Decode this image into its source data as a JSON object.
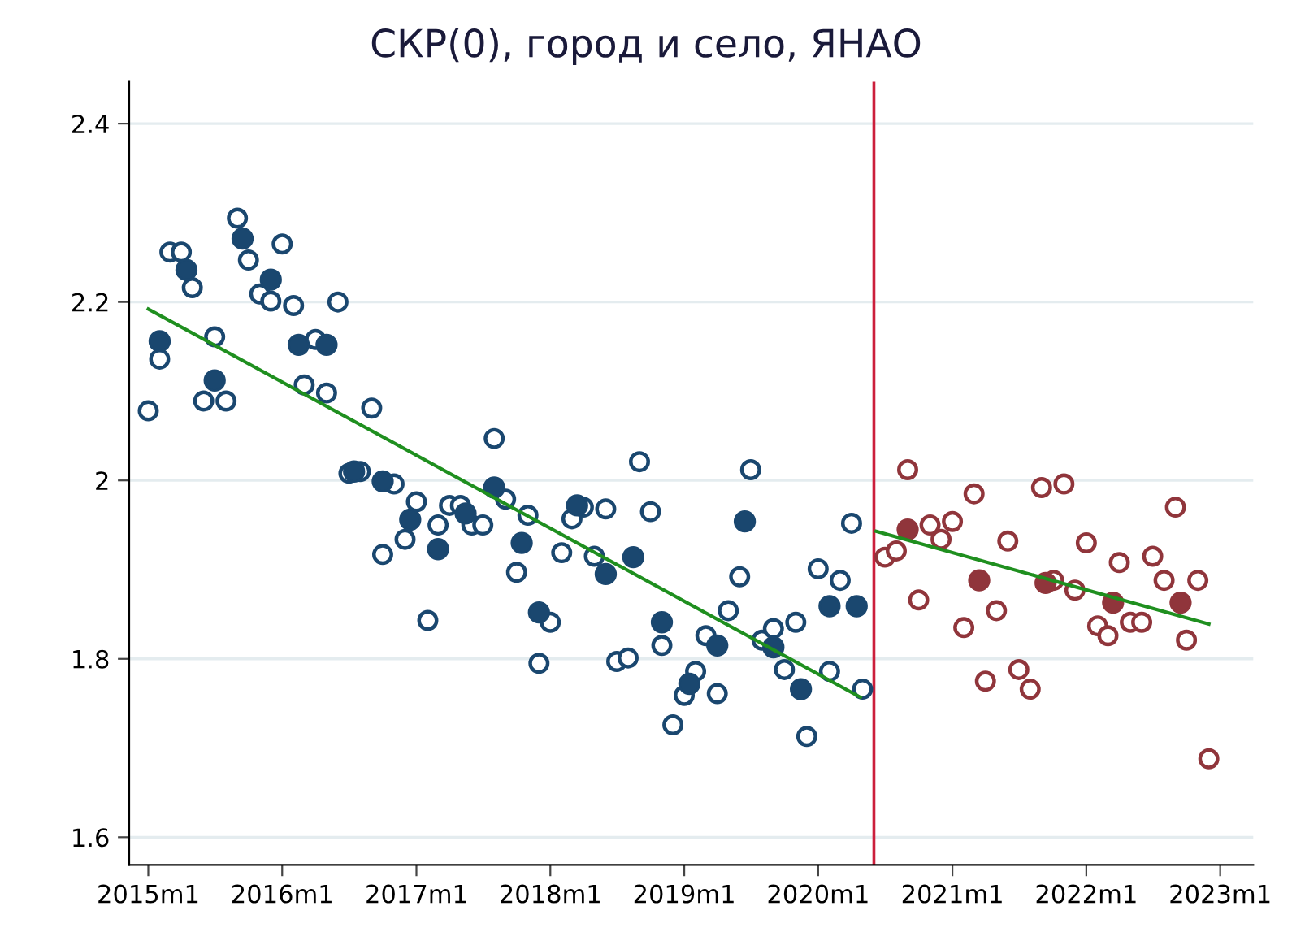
{
  "chart_data": {
    "type": "scatter",
    "title": "СКР(0), город и село, ЯНАО",
    "xlim": [
      "2014-11-10",
      "2023-04-01"
    ],
    "ylim": [
      1.569,
      2.447
    ],
    "xticks": [
      {
        "value": "2015-01",
        "label": "2015m1"
      },
      {
        "value": "2016-01",
        "label": "2016m1"
      },
      {
        "value": "2017-01",
        "label": "2017m1"
      },
      {
        "value": "2018-01",
        "label": "2018m1"
      },
      {
        "value": "2019-01",
        "label": "2019m1"
      },
      {
        "value": "2020-01",
        "label": "2020m1"
      },
      {
        "value": "2021-01",
        "label": "2021m1"
      },
      {
        "value": "2022-01",
        "label": "2022m1"
      },
      {
        "value": "2023-01",
        "label": "2023m1"
      }
    ],
    "yticks": [
      {
        "value": 1.6,
        "label": "1.6"
      },
      {
        "value": 1.8,
        "label": "1.8"
      },
      {
        "value": 2.0,
        "label": "2"
      },
      {
        "value": 2.2,
        "label": "2.2"
      },
      {
        "value": 2.4,
        "label": "2.4"
      }
    ],
    "grid": "y",
    "marker": "circle",
    "ref_lines": [
      {
        "axis": "x",
        "value": "2020-06",
        "color": "#cc1f3c"
      }
    ],
    "series": [
      {
        "color": "#1a476f",
        "x": [
          "2015-01",
          "2015-02",
          "2015-03",
          "2015-04",
          "2015-05",
          "2015-06",
          "2015-07",
          "2015-08",
          "2015-09",
          "2015-10",
          "2015-11",
          "2015-12",
          "2016-01",
          "2016-02",
          "2016-03",
          "2016-04",
          "2016-05",
          "2016-06",
          "2016-07",
          "2016-08",
          "2016-09",
          "2016-10",
          "2016-11",
          "2016-12",
          "2017-01",
          "2017-02",
          "2017-03",
          "2017-04",
          "2017-05",
          "2017-06",
          "2017-07",
          "2017-08",
          "2017-09",
          "2017-10",
          "2017-11",
          "2017-12",
          "2018-01",
          "2018-02",
          "2018-03",
          "2018-04",
          "2018-05",
          "2018-06",
          "2018-07",
          "2018-08",
          "2018-09",
          "2018-10",
          "2018-11",
          "2018-12",
          "2019-01",
          "2019-02",
          "2019-03",
          "2019-04",
          "2019-05",
          "2019-06",
          "2019-07",
          "2019-08",
          "2019-09",
          "2019-10",
          "2019-11",
          "2019-12",
          "2020-01",
          "2020-02",
          "2020-03",
          "2020-04",
          "2020-05"
        ],
        "values": [
          2.078,
          2.136,
          2.256,
          2.256,
          2.216,
          2.089,
          2.161,
          2.089,
          2.294,
          2.247,
          2.209,
          2.201,
          2.265,
          2.196,
          2.107,
          2.158,
          2.098,
          2.2,
          2.008,
          2.01,
          2.081,
          1.917,
          1.996,
          1.934,
          1.976,
          1.843,
          1.95,
          1.972,
          1.972,
          1.95,
          1.95,
          2.047,
          1.979,
          1.897,
          1.961,
          1.795,
          1.841,
          1.919,
          1.957,
          1.97,
          1.915,
          1.968,
          1.797,
          1.801,
          2.021,
          1.965,
          1.815,
          1.726,
          1.759,
          1.786,
          1.826,
          1.761,
          1.854,
          1.892,
          2.012,
          1.821,
          1.834,
          1.788,
          1.841,
          1.713,
          1.901,
          1.786,
          1.888,
          1.952,
          1.766
        ]
      },
      {
        "type": "bubble",
        "color": "#1a476f",
        "x": [
          "2015-02",
          "2015-04-15",
          "2015-07",
          "2015-09-15",
          "2015-12",
          "2016-02-15",
          "2016-05",
          "2016-07-15",
          "2016-10",
          "2016-12-15",
          "2017-03",
          "2017-05-15",
          "2017-08",
          "2017-10-15",
          "2017-12",
          "2018-03-15",
          "2018-06",
          "2018-08-15",
          "2018-11",
          "2019-01-15",
          "2019-04",
          "2019-06-15",
          "2019-09",
          "2019-11-15",
          "2020-02",
          "2020-04-15"
        ],
        "values": [
          2.156,
          2.236,
          2.112,
          2.271,
          2.225,
          2.152,
          2.152,
          2.01,
          1.999,
          1.956,
          1.923,
          1.963,
          1.992,
          1.93,
          1.852,
          1.972,
          1.895,
          1.914,
          1.841,
          1.772,
          1.815,
          1.954,
          1.813,
          1.766,
          1.859,
          1.859
        ],
        "sizes": [
          1,
          1,
          1,
          1,
          1,
          1,
          1,
          1,
          1,
          1,
          1,
          1,
          1,
          1,
          1,
          1,
          1,
          1,
          1,
          1,
          1,
          1,
          1,
          1,
          1,
          1
        ]
      },
      {
        "color": "#90353b",
        "x": [
          "2020-07",
          "2020-08",
          "2020-09",
          "2020-10",
          "2020-11",
          "2020-12",
          "2021-01",
          "2021-02",
          "2021-03",
          "2021-04",
          "2021-05",
          "2021-06",
          "2021-07",
          "2021-08",
          "2021-09",
          "2021-10-04",
          "2021-11",
          "2021-12",
          "2022-01",
          "2022-02",
          "2022-03",
          "2022-04",
          "2022-05",
          "2022-06",
          "2022-07",
          "2022-08",
          "2022-09",
          "2022-10",
          "2022-11",
          "2022-12"
        ],
        "values": [
          1.914,
          1.921,
          2.012,
          1.866,
          1.95,
          1.934,
          1.954,
          1.835,
          1.985,
          1.775,
          1.854,
          1.932,
          1.788,
          1.766,
          1.992,
          1.888,
          1.996,
          1.877,
          1.93,
          1.837,
          1.826,
          1.908,
          1.841,
          1.841,
          1.915,
          1.888,
          1.97,
          1.821,
          1.888,
          1.688
        ]
      },
      {
        "type": "bubble",
        "color": "#90353b",
        "x": [
          "2020-09",
          "2021-03-15",
          "2021-09-12",
          "2022-03-15",
          "2022-09-15"
        ],
        "values": [
          1.945,
          1.888,
          1.885,
          1.863,
          1.863
        ],
        "sizes": [
          1,
          1,
          1,
          1,
          1
        ]
      },
      {
        "type": "line",
        "marker": "none",
        "color": "#1f8f1f",
        "x": [
          "2015-01",
          "2020-04-25"
        ],
        "values": [
          2.192,
          1.757
        ]
      },
      {
        "type": "line",
        "marker": "none",
        "color": "#1f8f1f",
        "x": [
          "2020-06-07",
          "2022-12"
        ],
        "values": [
          1.943,
          1.839
        ]
      }
    ]
  }
}
